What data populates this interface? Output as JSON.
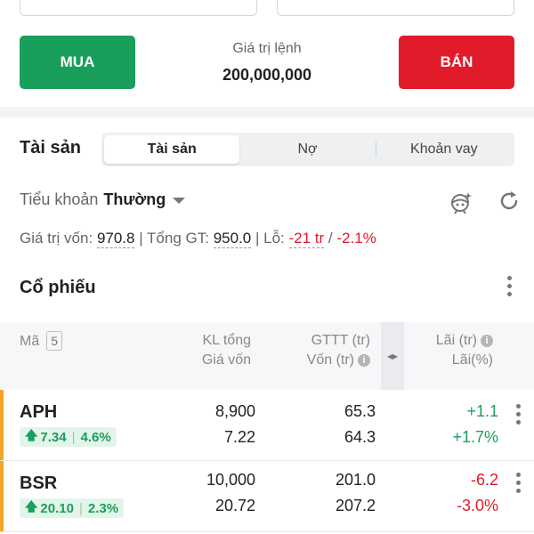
{
  "order": {
    "buy_label": "MUA",
    "sell_label": "BÁN",
    "value_label": "Giá trị lệnh",
    "value": "200,000,000"
  },
  "assets": {
    "title": "Tài sản",
    "tabs": [
      {
        "label": "Tài sản",
        "active": true
      },
      {
        "label": "Nợ",
        "active": false
      },
      {
        "label": "Khoản vay",
        "active": false
      }
    ],
    "subaccount_label": "Tiểu khoản",
    "subaccount_value": "Thường",
    "summary": {
      "capital_label": "Giá trị vốn:",
      "capital_value": "970.8",
      "total_label": "| Tổng GT:",
      "total_value": "950.0",
      "loss_label": "| Lỗ:",
      "loss_value": "-21 tr",
      "loss_sep": "/",
      "loss_pct": "-2.1%"
    }
  },
  "stocks": {
    "title": "Cổ phiếu",
    "headers": {
      "code": "Mã",
      "count": "5",
      "qty_total": "KL tổng",
      "cost_price": "Giá vốn",
      "market_value": "GTTT (tr)",
      "capital": "Vốn (tr)",
      "profit": "Lãi (tr)",
      "profit_pct": "Lãi(%)",
      "swap_icon": "swap-horizontal-icon"
    },
    "rows": [
      {
        "code": "APH",
        "price": "7.34",
        "change_pct": "4.6%",
        "qty": "8,900",
        "cost": "7.22",
        "market_value": "65.3",
        "capital": "64.3",
        "profit": "+1.1",
        "profit_pct": "+1.7%",
        "direction": "up"
      },
      {
        "code": "BSR",
        "price": "20.10",
        "change_pct": "2.3%",
        "qty": "10,000",
        "cost": "20.72",
        "market_value": "201.0",
        "capital": "207.2",
        "profit": "-6.2",
        "profit_pct": "-3.0%",
        "direction": "up"
      }
    ]
  },
  "colors": {
    "buy": "#1a9e5c",
    "sell": "#e21b2a",
    "accent_bar": "#f5a623",
    "positive": "#1a9e5c",
    "negative": "#e21b2a"
  },
  "icons": {
    "bot": "bot-assistant-icon",
    "refresh": "refresh-icon",
    "more": "more-vertical-icon",
    "info": "info-icon",
    "up": "arrow-up-icon"
  }
}
